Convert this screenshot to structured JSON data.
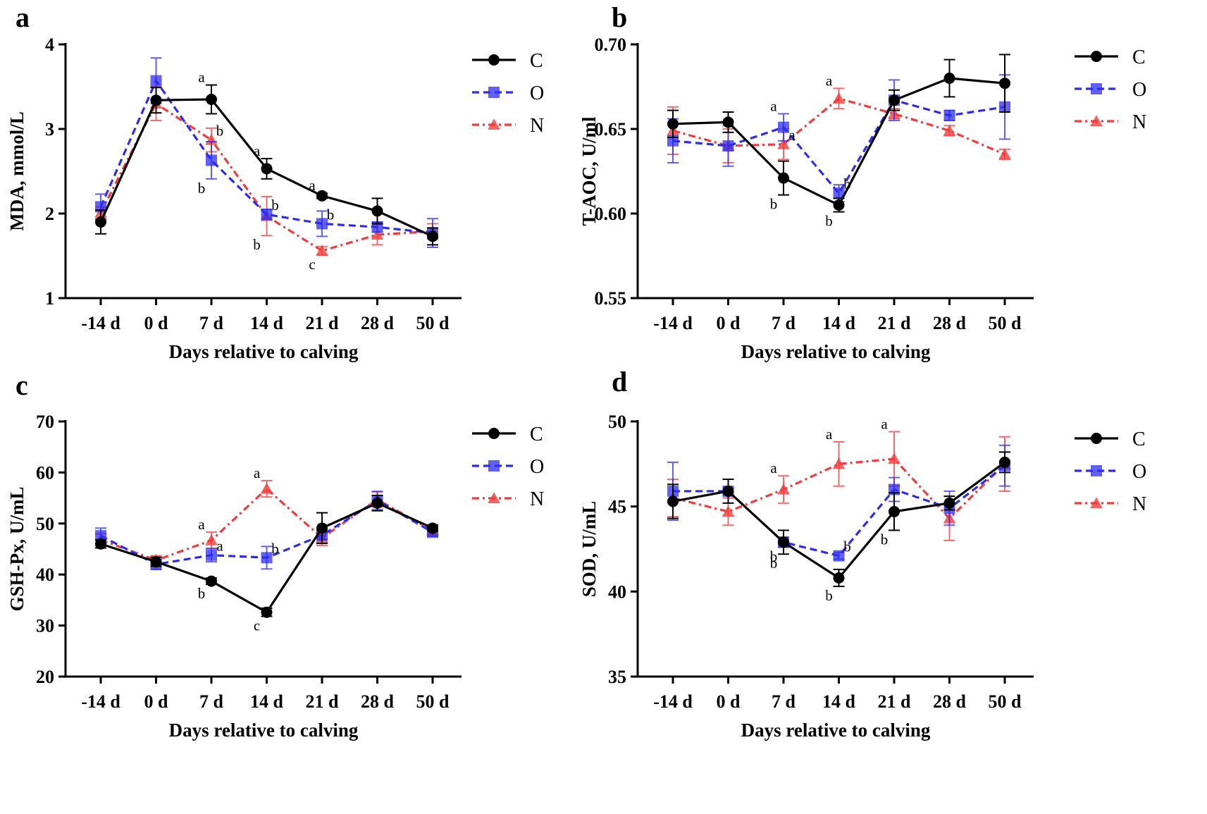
{
  "chart_data": [
    {
      "panel": "a",
      "type": "line",
      "ylabel": "MDA, mmol/L",
      "xlabel": "Days relative to calving",
      "categories": [
        "-14 d",
        "0 d",
        "7 d",
        "14 d",
        "21 d",
        "28 d",
        "50 d"
      ],
      "ylim": [
        1,
        4
      ],
      "yticks": [
        "1",
        "2",
        "3",
        "4"
      ],
      "series": [
        {
          "name": "C",
          "values": [
            1.9,
            3.34,
            3.35,
            2.53,
            2.21,
            2.03,
            1.73
          ],
          "errors": [
            0.14,
            0.15,
            0.17,
            0.12,
            0.03,
            0.15,
            0.1
          ]
        },
        {
          "name": "O",
          "values": [
            2.08,
            3.57,
            2.63,
            1.99,
            1.88,
            1.84,
            1.77
          ],
          "errors": [
            0.15,
            0.27,
            0.22,
            0.06,
            0.15,
            0.06,
            0.17
          ]
        },
        {
          "name": "N",
          "values": [
            2.01,
            3.3,
            2.87,
            1.97,
            1.56,
            1.75,
            1.79
          ],
          "errors": [
            0.07,
            0.2,
            0.14,
            0.23,
            0.05,
            0.12,
            0.09
          ]
        }
      ],
      "annotations": [
        {
          "series": "C",
          "index": 2,
          "text": "a"
        },
        {
          "series": "N",
          "index": 2,
          "text": "b"
        },
        {
          "series": "O",
          "index": 2,
          "text": "b"
        },
        {
          "series": "C",
          "index": 3,
          "text": "a"
        },
        {
          "series": "O",
          "index": 3,
          "text": "b"
        },
        {
          "series": "N",
          "index": 3,
          "text": "b"
        },
        {
          "series": "C",
          "index": 4,
          "text": "a"
        },
        {
          "series": "O",
          "index": 4,
          "text": "b"
        },
        {
          "series": "N",
          "index": 4,
          "text": "c"
        }
      ]
    },
    {
      "panel": "b",
      "type": "line",
      "ylabel": "T-AOC, U/ml",
      "xlabel": "Days relative to calving",
      "categories": [
        "-14 d",
        "0 d",
        "7 d",
        "14 d",
        "21 d",
        "28 d",
        "50 d"
      ],
      "ylim": [
        0.55,
        0.7
      ],
      "yticks": [
        "0.55",
        "0.60",
        "0.65",
        "0.70"
      ],
      "series": [
        {
          "name": "C",
          "values": [
            0.653,
            0.654,
            0.621,
            0.605,
            0.667,
            0.68,
            0.677
          ],
          "errors": [
            0.008,
            0.006,
            0.01,
            0.004,
            0.006,
            0.011,
            0.017
          ]
        },
        {
          "name": "O",
          "values": [
            0.643,
            0.64,
            0.651,
            0.612,
            0.667,
            0.658,
            0.663
          ],
          "errors": [
            0.013,
            0.012,
            0.008,
            0.005,
            0.012,
            0.003,
            0.019
          ]
        },
        {
          "name": "N",
          "values": [
            0.649,
            0.64,
            0.641,
            0.668,
            0.659,
            0.649,
            0.635
          ],
          "errors": [
            0.014,
            0.01,
            0.009,
            0.006,
            0.003,
            0.003,
            0.003
          ]
        }
      ],
      "annotations": [
        {
          "series": "O",
          "index": 2,
          "text": "a"
        },
        {
          "series": "N",
          "index": 2,
          "text": "a"
        },
        {
          "series": "C",
          "index": 2,
          "text": "b"
        },
        {
          "series": "N",
          "index": 3,
          "text": "a"
        },
        {
          "series": "O",
          "index": 3,
          "text": "b"
        },
        {
          "series": "C",
          "index": 3,
          "text": "b"
        }
      ]
    },
    {
      "panel": "c",
      "type": "line",
      "ylabel": "GSH-Px, U/mL",
      "xlabel": "Days relative to calving",
      "categories": [
        "-14 d",
        "0 d",
        "7 d",
        "14 d",
        "21 d",
        "28 d",
        "50 d"
      ],
      "ylim": [
        20,
        70
      ],
      "yticks": [
        "20",
        "30",
        "40",
        "50",
        "60",
        "70"
      ],
      "series": [
        {
          "name": "C",
          "values": [
            46.0,
            42.5,
            38.7,
            32.6,
            49.1,
            54.0,
            49.1
          ],
          "errors": [
            0.8,
            0.9,
            0.6,
            0.8,
            3.0,
            1.5,
            0.6
          ]
        },
        {
          "name": "O",
          "values": [
            47.6,
            42.0,
            43.8,
            43.3,
            47.7,
            54.5,
            48.3
          ],
          "errors": [
            1.5,
            1.0,
            1.3,
            2.2,
            0.8,
            1.8,
            0.8
          ]
        },
        {
          "name": "N",
          "values": [
            46.8,
            42.8,
            46.7,
            56.8,
            47.2,
            54.7,
            48.6
          ],
          "errors": [
            1.2,
            0.9,
            1.6,
            1.6,
            1.5,
            1.5,
            0.6
          ]
        }
      ],
      "annotations": [
        {
          "series": "N",
          "index": 2,
          "text": "a"
        },
        {
          "series": "O",
          "index": 2,
          "text": "a"
        },
        {
          "series": "C",
          "index": 2,
          "text": "b"
        },
        {
          "series": "N",
          "index": 3,
          "text": "a"
        },
        {
          "series": "O",
          "index": 3,
          "text": "b"
        },
        {
          "series": "C",
          "index": 3,
          "text": "c"
        }
      ]
    },
    {
      "panel": "d",
      "type": "line",
      "ylabel": "SOD, U/mL",
      "xlabel": "Days relative to calving",
      "categories": [
        "-14 d",
        "0 d",
        "7 d",
        "14 d",
        "21 d",
        "28 d",
        "50 d"
      ],
      "ylim": [
        35,
        50
      ],
      "yticks": [
        "35",
        "40",
        "45",
        "50"
      ],
      "series": [
        {
          "name": "C",
          "values": [
            45.3,
            45.9,
            42.9,
            40.8,
            44.7,
            45.2,
            47.6
          ],
          "errors": [
            1.0,
            0.7,
            0.7,
            0.5,
            1.1,
            0.4,
            0.6
          ]
        },
        {
          "name": "O",
          "values": [
            45.9,
            45.9,
            42.9,
            42.1,
            46.0,
            44.9,
            47.4
          ],
          "errors": [
            1.7,
            0.2,
            0.3,
            0.2,
            0.7,
            1.0,
            1.2
          ]
        },
        {
          "name": "N",
          "values": [
            45.5,
            44.7,
            46.0,
            47.5,
            47.8,
            44.3,
            47.5
          ],
          "errors": [
            1.1,
            0.8,
            0.8,
            1.3,
            1.6,
            1.3,
            1.6
          ]
        }
      ],
      "annotations": [
        {
          "series": "N",
          "index": 2,
          "text": "a"
        },
        {
          "series": "O",
          "index": 2,
          "text": "b"
        },
        {
          "series": "C",
          "index": 2,
          "text": "b"
        },
        {
          "series": "N",
          "index": 3,
          "text": "a"
        },
        {
          "series": "O",
          "index": 3,
          "text": "b"
        },
        {
          "series": "C",
          "index": 3,
          "text": "b"
        },
        {
          "series": "N",
          "index": 4,
          "text": "a"
        },
        {
          "series": "C",
          "index": 4,
          "text": "b"
        }
      ]
    }
  ],
  "legend": [
    "C",
    "O",
    "N"
  ],
  "colors": {
    "C": "#000000",
    "O": "#2c2cf0",
    "N": "#f03c3c"
  }
}
